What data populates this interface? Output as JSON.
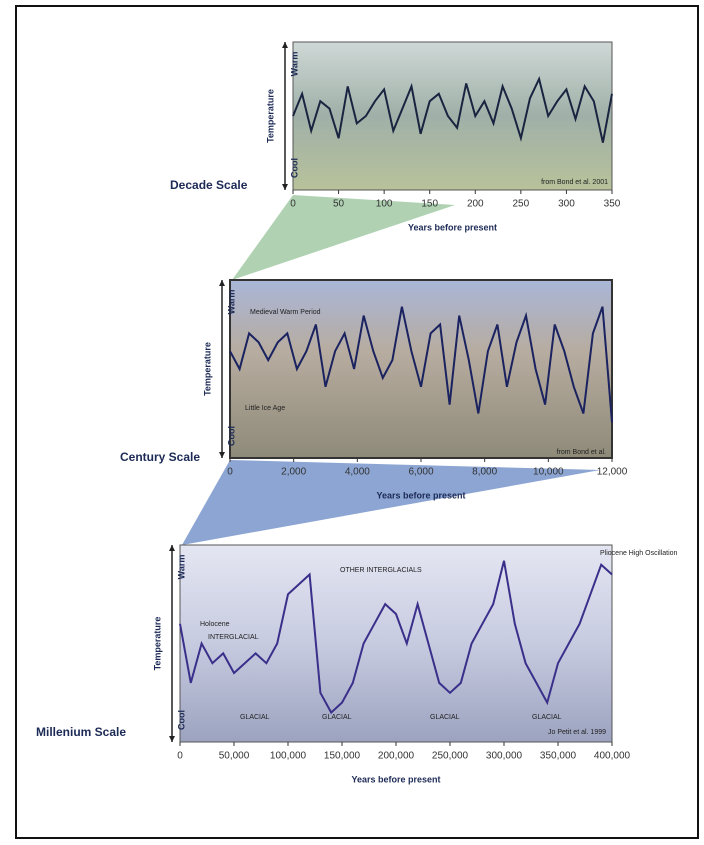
{
  "chart_data": [
    {
      "type": "line",
      "title": "Decade Scale",
      "x_label": "Years before present",
      "y_label": "Temperature",
      "y_high_label": "Warm",
      "y_low_label": "Cool",
      "source": "from Bond et al. 2001",
      "x": [
        0,
        10,
        20,
        30,
        40,
        50,
        60,
        70,
        80,
        90,
        100,
        110,
        120,
        130,
        140,
        150,
        160,
        170,
        180,
        190,
        200,
        210,
        220,
        230,
        240,
        250,
        260,
        270,
        280,
        290,
        300,
        310,
        320,
        330,
        340,
        350
      ],
      "series": [
        {
          "name": "Temperature",
          "color": "#1a2440",
          "values": [
            5,
            6.5,
            4,
            6,
            5.5,
            3.5,
            7,
            4.5,
            5,
            6,
            6.8,
            4,
            5.5,
            7,
            3.8,
            6,
            6.5,
            5,
            4.2,
            7.2,
            5,
            6,
            4.5,
            7,
            5.5,
            3.5,
            6.2,
            7.5,
            5,
            6,
            6.8,
            4.8,
            7,
            6,
            3.2,
            6.5
          ]
        }
      ],
      "xlim": [
        0,
        350
      ],
      "xticks": [
        0,
        50,
        100,
        150,
        200,
        250,
        300,
        350
      ],
      "ylim": [
        0,
        10
      ],
      "annotations": []
    },
    {
      "type": "line",
      "title": "Century Scale",
      "x_label": "Years before present",
      "y_label": "Temperature",
      "y_high_label": "Warm",
      "y_low_label": "Cool",
      "source": "from Bond et al.",
      "x": [
        0,
        300,
        600,
        900,
        1200,
        1500,
        1800,
        2100,
        2400,
        2700,
        3000,
        3300,
        3600,
        3900,
        4200,
        4500,
        4800,
        5100,
        5400,
        5700,
        6000,
        6300,
        6600,
        6900,
        7200,
        7500,
        7800,
        8100,
        8400,
        8700,
        9000,
        9300,
        9600,
        9900,
        10200,
        10500,
        10800,
        11100,
        11400,
        11700,
        12000
      ],
      "series": [
        {
          "name": "Temperature",
          "color": "#1a2260",
          "values": [
            6,
            5,
            7,
            6.5,
            5.5,
            6.5,
            7,
            5,
            6,
            7.5,
            4,
            6,
            7,
            5,
            8,
            6,
            4.5,
            5.5,
            8.5,
            6,
            4,
            7,
            7.5,
            3,
            8,
            5.5,
            2.5,
            6,
            7.5,
            4,
            6.5,
            8,
            5,
            3,
            7.5,
            6,
            4,
            2.5,
            7,
            8.5,
            2
          ]
        }
      ],
      "xlim": [
        0,
        12000
      ],
      "xticks": [
        0,
        {
          "value": 2000,
          "label": "2,000"
        },
        {
          "value": 4000,
          "label": "4,000"
        },
        {
          "value": 6000,
          "label": "6,000"
        },
        {
          "value": 8000,
          "label": "8,000"
        },
        {
          "value": 10000,
          "label": "10,000"
        },
        {
          "value": 12000,
          "label": "12,000"
        }
      ],
      "ylim": [
        0,
        10
      ],
      "annotations": [
        "Medieval Warm Period",
        "Little Ice Age"
      ]
    },
    {
      "type": "line",
      "title": "Millenium Scale",
      "x_label": "Years before present",
      "y_label": "Temperature",
      "y_high_label": "Warm",
      "y_low_label": "Cool",
      "source": "Jo Petit et al. 1999",
      "x": [
        0,
        10000,
        20000,
        30000,
        40000,
        50000,
        60000,
        70000,
        80000,
        90000,
        100000,
        110000,
        120000,
        130000,
        140000,
        150000,
        160000,
        170000,
        180000,
        190000,
        200000,
        210000,
        220000,
        230000,
        240000,
        250000,
        260000,
        270000,
        280000,
        290000,
        300000,
        310000,
        320000,
        330000,
        340000,
        350000,
        360000,
        370000,
        380000,
        390000,
        400000
      ],
      "series": [
        {
          "name": "Temperature",
          "color": "#3a2f8a",
          "values": [
            6,
            3,
            5,
            4,
            4.5,
            3.5,
            4,
            4.5,
            4,
            5,
            7.5,
            8,
            8.5,
            2.5,
            1.5,
            2,
            3,
            5,
            6,
            7,
            6.5,
            5,
            7,
            5,
            3,
            2.5,
            3,
            5,
            6,
            7,
            9.2,
            6,
            4,
            3,
            2,
            4,
            5,
            6,
            7.5,
            9,
            8.5
          ]
        }
      ],
      "xlim": [
        0,
        400000
      ],
      "xticks": [
        0,
        {
          "value": 50000,
          "label": "50,000"
        },
        {
          "value": 100000,
          "label": "100,000"
        },
        {
          "value": 150000,
          "label": "150,000"
        },
        {
          "value": 200000,
          "label": "200,000"
        },
        {
          "value": 250000,
          "label": "250,000"
        },
        {
          "value": 300000,
          "label": "300,000"
        },
        {
          "value": 350000,
          "label": "350,000"
        },
        {
          "value": 400000,
          "label": "400,000"
        }
      ],
      "ylim": [
        0,
        10
      ],
      "annotations": [
        "Holocene",
        "INTERGLACIAL",
        "OTHER INTERGLACIALS",
        "GLACIAL",
        "GLACIAL",
        "GLACIAL",
        "GLACIAL",
        "Pliocene High Oscillation"
      ]
    }
  ]
}
